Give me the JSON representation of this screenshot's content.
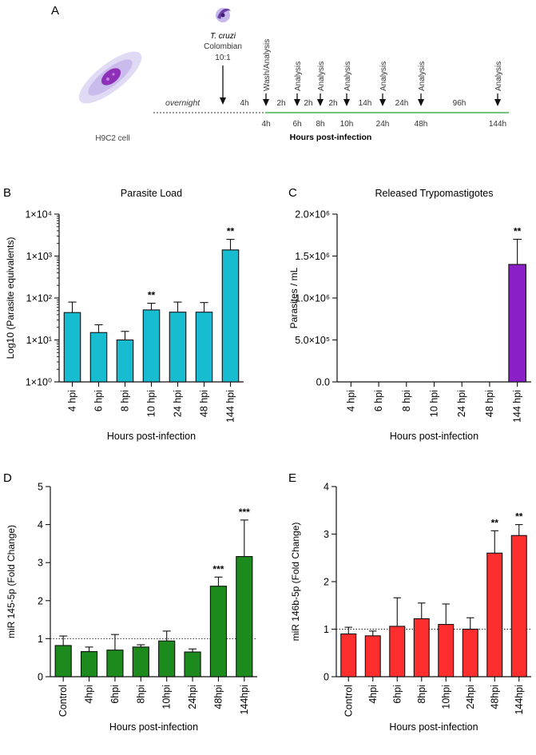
{
  "panel_a": {
    "letter": "A",
    "cell_label": "H9C2 cell",
    "parasite_name": "T. cruzi",
    "parasite_strain": "Colombian",
    "moi": "10:1",
    "overnight": "overnight",
    "top_events": [
      "Wash/Analysis",
      "Analysis",
      "Analysis",
      "Analysis",
      "Analysis",
      "Analysis",
      "Analysis"
    ],
    "intervals": [
      "4h",
      "2h",
      "2h",
      "2h",
      "14h",
      "24h",
      "96h"
    ],
    "bottom_times": [
      "4h",
      "6h",
      "8h",
      "10h",
      "24h",
      "48h",
      "144h"
    ],
    "axis_title": "Hours post-infection",
    "colors": {
      "timeline": "#4caf50",
      "cell": "#a78bd8",
      "nucleus": "#8e2fb8"
    }
  },
  "chart_data": [
    {
      "panel": "B",
      "type": "bar",
      "title": "Parasite Load",
      "ylabel": "Log10 (Parasite equivalents)",
      "xlabel": "Hours post-infection",
      "yscale": "log",
      "ylim": [
        1,
        10000
      ],
      "ytick_labels": [
        "1×10⁰",
        "1×10¹",
        "1×10²",
        "1×10³",
        "1×10⁴"
      ],
      "categories": [
        "4 hpi",
        "6 hpi",
        "8 hpi",
        "10 hpi",
        "24 hpi",
        "48 hpi",
        "144 hpi"
      ],
      "values": [
        45,
        15,
        10,
        52,
        46,
        46,
        1400
      ],
      "errors": [
        80,
        23,
        16,
        75,
        80,
        78,
        2500
      ],
      "annotations": [
        "",
        "",
        "",
        "**",
        "",
        "",
        "**"
      ],
      "color": "#17bcd1"
    },
    {
      "panel": "C",
      "type": "bar",
      "title": "Released Trypomastigotes",
      "ylabel": "Parasites / mL",
      "xlabel": "Hours post-infection",
      "ylim": [
        0,
        2000000
      ],
      "yticks": [
        0,
        500000,
        1000000,
        1500000,
        2000000
      ],
      "ytick_labels": [
        "0.0",
        "5.0×10⁵",
        "1.0×10⁶",
        "1.5×10⁶",
        "2.0×10⁶"
      ],
      "categories": [
        "4 hpi",
        "6 hpi",
        "8 hpi",
        "10 hpi",
        "24 hpi",
        "48 hpi",
        "144 hpi"
      ],
      "values": [
        0,
        0,
        0,
        0,
        0,
        0,
        1400000
      ],
      "errors": [
        0,
        0,
        0,
        0,
        0,
        0,
        1700000
      ],
      "annotations": [
        "",
        "",
        "",
        "",
        "",
        "",
        "**"
      ],
      "color": "#8a1fc8"
    },
    {
      "panel": "D",
      "type": "bar",
      "ylabel": "miR 145-5p (Fold Change)",
      "xlabel": "Hours post-infection",
      "ylim": [
        0,
        5
      ],
      "yticks": [
        0,
        1,
        2,
        3,
        4,
        5
      ],
      "ytick_labels": [
        "0",
        "1",
        "2",
        "3",
        "4",
        "5"
      ],
      "reference_line": 1,
      "categories": [
        "Control",
        "4hpi",
        "6hpi",
        "8hpi",
        "10hpi",
        "24hpi",
        "48hpi",
        "144hpi"
      ],
      "values": [
        0.82,
        0.66,
        0.7,
        0.78,
        0.94,
        0.65,
        2.38,
        3.16
      ],
      "errors": [
        1.07,
        0.78,
        1.11,
        0.84,
        1.2,
        0.73,
        2.62,
        4.12
      ],
      "annotations": [
        "",
        "",
        "",
        "",
        "",
        "",
        "***",
        "***"
      ],
      "color": "#1c8a1c"
    },
    {
      "panel": "E",
      "type": "bar",
      "ylabel": "miR 146b-5p (Fold Change)",
      "xlabel": "Hours post-infection",
      "ylim": [
        0,
        4
      ],
      "yticks": [
        0,
        1,
        2,
        3,
        4
      ],
      "ytick_labels": [
        "0",
        "1",
        "2",
        "3",
        "4"
      ],
      "reference_line": 1,
      "categories": [
        "Control",
        "4hpi",
        "6hpi",
        "8hpi",
        "10hpi",
        "24hpi",
        "48hpi",
        "144hpi"
      ],
      "values": [
        0.9,
        0.86,
        1.06,
        1.22,
        1.1,
        1.0,
        2.6,
        2.97
      ],
      "errors": [
        1.04,
        0.96,
        1.66,
        1.55,
        1.53,
        1.24,
        3.07,
        3.2
      ],
      "annotations": [
        "",
        "",
        "",
        "",
        "",
        "",
        "**",
        "**"
      ],
      "color": "#ff2e2e"
    }
  ]
}
